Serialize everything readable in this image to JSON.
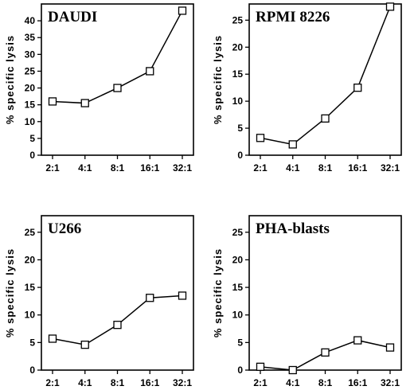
{
  "chart_data": [
    {
      "type": "line",
      "title": "DAUDI",
      "ylabel": "% specific lysis",
      "categories": [
        "2:1",
        "4:1",
        "8:1",
        "16:1",
        "32:1"
      ],
      "values": [
        16,
        15.5,
        20,
        25,
        43
      ],
      "ylim": [
        0,
        45
      ],
      "yticks": [
        0,
        5,
        10,
        15,
        20,
        25,
        30,
        35,
        40
      ],
      "grid": false
    },
    {
      "type": "line",
      "title": "RPMI 8226",
      "ylabel": "% specific lysis",
      "categories": [
        "2:1",
        "4:1",
        "8:1",
        "16:1",
        "32:1"
      ],
      "values": [
        3.2,
        2,
        6.8,
        12.5,
        27.5
      ],
      "ylim": [
        0,
        28
      ],
      "yticks": [
        0,
        5,
        10,
        15,
        20,
        25
      ],
      "grid": false
    },
    {
      "type": "line",
      "title": "U266",
      "ylabel": "% specific lysis",
      "categories": [
        "2:1",
        "4:1",
        "8:1",
        "16:1",
        "32:1"
      ],
      "values": [
        5.7,
        4.6,
        8.2,
        13.1,
        13.5
      ],
      "ylim": [
        0,
        28
      ],
      "yticks": [
        0,
        5,
        10,
        15,
        20,
        25
      ],
      "grid": false
    },
    {
      "type": "line",
      "title": "PHA-blasts",
      "ylabel": "% specific lysis",
      "categories": [
        "2:1",
        "4:1",
        "8:1",
        "16:1",
        "32:1"
      ],
      "values": [
        0.6,
        0,
        3.2,
        5.4,
        4.1
      ],
      "ylim": [
        0,
        28
      ],
      "yticks": [
        0,
        5,
        10,
        15,
        20,
        25
      ],
      "grid": false
    }
  ]
}
